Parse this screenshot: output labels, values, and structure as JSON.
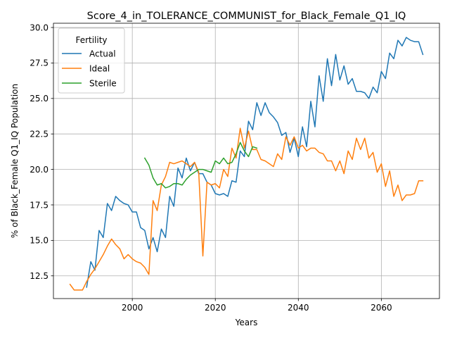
{
  "chart_data": {
    "type": "line",
    "title": "Score_4_in_TOLERANCE_COMMUNIST_for_Black_Female_Q1_IQ",
    "xlabel": "Years",
    "ylabel": "% of Black_Female Q1_IQ Population",
    "xlim": [
      1981,
      2074
    ],
    "ylim": [
      10.9,
      30.3
    ],
    "xticks": [
      2000,
      2020,
      2040,
      2060
    ],
    "yticks": [
      12.5,
      15.0,
      17.5,
      20.0,
      22.5,
      25.0,
      27.5,
      30.0
    ],
    "ytick_labels": [
      "12.5",
      "15.0",
      "17.5",
      "20.0",
      "22.5",
      "25.0",
      "27.5",
      "30.0"
    ],
    "grid": true,
    "legend": {
      "title": "Fertility",
      "placement": "top-left"
    },
    "colors": {
      "Actual": "#1f77b4",
      "Ideal": "#ff7f0e",
      "Sterile": "#2ca02c"
    },
    "series": [
      {
        "name": "Actual",
        "x": [
          1989,
          1990,
          1991,
          1992,
          1993,
          1994,
          1995,
          1996,
          1997,
          1998,
          1999,
          2000,
          2001,
          2002,
          2003,
          2004,
          2005,
          2006,
          2007,
          2008,
          2009,
          2010,
          2011,
          2012,
          2013,
          2014,
          2015,
          2016,
          2017,
          2018,
          2019,
          2020,
          2021,
          2022,
          2023,
          2024,
          2025,
          2026,
          2027,
          2028,
          2029,
          2030,
          2031,
          2032,
          2033,
          2034,
          2035,
          2036,
          2037,
          2038,
          2039,
          2040,
          2041,
          2042,
          2043,
          2044,
          2045,
          2046,
          2047,
          2048,
          2049,
          2050,
          2051,
          2052,
          2053,
          2054,
          2055,
          2056,
          2057,
          2058,
          2059,
          2060,
          2061,
          2062,
          2063,
          2064,
          2065,
          2066,
          2067,
          2068,
          2069,
          2070
        ],
        "values": [
          11.7,
          13.5,
          12.9,
          15.7,
          15.2,
          17.6,
          17.1,
          18.1,
          17.8,
          17.6,
          17.5,
          17.0,
          17.0,
          15.9,
          15.7,
          14.4,
          15.2,
          14.2,
          15.8,
          15.2,
          18.1,
          17.4,
          20.1,
          19.4,
          20.8,
          19.9,
          20.5,
          19.7,
          19.7,
          19.1,
          18.9,
          18.3,
          18.2,
          18.3,
          18.1,
          19.2,
          19.1,
          21.3,
          20.9,
          23.4,
          22.8,
          24.7,
          23.8,
          24.7,
          24.0,
          23.7,
          23.3,
          22.4,
          22.6,
          21.2,
          22.2,
          20.9,
          23.0,
          21.6,
          24.8,
          23.0,
          26.6,
          24.8,
          27.8,
          25.9,
          28.1,
          26.3,
          27.3,
          26.0,
          26.4,
          25.5,
          25.5,
          25.4,
          25.0,
          25.8,
          25.4,
          26.9,
          26.4,
          28.2,
          27.8,
          29.1,
          28.7,
          29.3,
          29.1,
          29.0,
          29.0,
          28.1
        ]
      },
      {
        "name": "Ideal",
        "x": [
          1985,
          1986,
          1987,
          1988,
          1989,
          1990,
          1991,
          1992,
          1993,
          1994,
          1995,
          1996,
          1997,
          1998,
          1999,
          2000,
          2001,
          2002,
          2003,
          2004,
          2005,
          2006,
          2007,
          2008,
          2009,
          2010,
          2011,
          2012,
          2013,
          2014,
          2015,
          2016,
          2017,
          2018,
          2019,
          2020,
          2021,
          2022,
          2023,
          2024,
          2025,
          2026,
          2027,
          2028,
          2029,
          2030,
          2031,
          2032,
          2033,
          2034,
          2035,
          2036,
          2037,
          2038,
          2039,
          2040,
          2041,
          2042,
          2043,
          2044,
          2045,
          2046,
          2047,
          2048,
          2049,
          2050,
          2051,
          2052,
          2053,
          2054,
          2055,
          2056,
          2057,
          2058,
          2059,
          2060,
          2061,
          2062,
          2063,
          2064,
          2065,
          2066,
          2067,
          2068,
          2069,
          2070
        ],
        "values": [
          11.9,
          11.5,
          11.5,
          11.5,
          12.1,
          12.6,
          13.0,
          13.5,
          14.0,
          14.6,
          15.1,
          14.7,
          14.4,
          13.7,
          14.0,
          13.7,
          13.5,
          13.4,
          13.1,
          12.6,
          17.8,
          17.1,
          18.9,
          19.5,
          20.5,
          20.4,
          20.5,
          20.6,
          20.4,
          20.2,
          20.5,
          19.8,
          13.9,
          19.1,
          18.9,
          19.0,
          18.7,
          20.0,
          19.5,
          21.5,
          20.8,
          22.9,
          21.5,
          22.7,
          21.4,
          21.4,
          20.7,
          20.6,
          20.4,
          20.2,
          21.1,
          20.7,
          22.3,
          21.7,
          22.3,
          21.5,
          21.7,
          21.3,
          21.5,
          21.5,
          21.2,
          21.1,
          20.6,
          20.6,
          19.9,
          20.6,
          19.7,
          21.3,
          20.7,
          22.2,
          21.4,
          22.2,
          20.8,
          21.2,
          19.8,
          20.4,
          18.8,
          19.9,
          18.1,
          18.9,
          17.8,
          18.2,
          18.2,
          18.3,
          19.2,
          19.2
        ]
      },
      {
        "name": "Sterile",
        "x": [
          2003,
          2004,
          2005,
          2006,
          2007,
          2008,
          2009,
          2010,
          2011,
          2012,
          2013,
          2014,
          2015,
          2016,
          2017,
          2018,
          2019,
          2020,
          2021,
          2022,
          2023,
          2024,
          2025,
          2026,
          2027,
          2028,
          2029,
          2030
        ],
        "values": [
          20.8,
          20.3,
          19.4,
          18.9,
          19.0,
          18.7,
          18.8,
          19.0,
          19.0,
          18.9,
          19.3,
          19.6,
          19.8,
          20.0,
          20.0,
          19.9,
          19.8,
          20.6,
          20.4,
          20.8,
          20.4,
          20.5,
          21.1,
          21.9,
          21.3,
          20.9,
          21.6,
          21.5
        ]
      }
    ]
  }
}
